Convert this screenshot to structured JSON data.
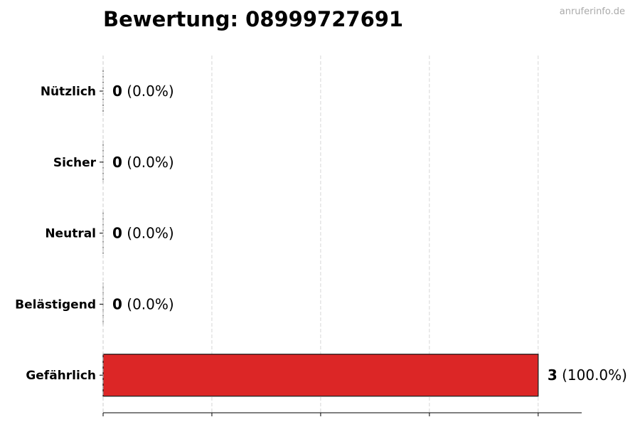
{
  "title": "Bewertung: 08999727691",
  "watermark": "anruferinfo.de",
  "chart_data": {
    "type": "bar",
    "orientation": "horizontal",
    "title": "Bewertung: 08999727691",
    "xlabel": "",
    "ylabel": "",
    "categories": [
      "Nützlich",
      "Sicher",
      "Neutral",
      "Belästigend",
      "Gefährlich"
    ],
    "values": [
      0,
      0,
      0,
      0,
      3
    ],
    "value_labels": [
      "0",
      "0",
      "0",
      "0",
      "3"
    ],
    "percent_labels": [
      "(0.0%)",
      "(0.0%)",
      "(0.0%)",
      "(0.0%)",
      "(100.0%)"
    ],
    "colors": [
      "#2ca02c",
      "#1f77b4",
      "#7f7f7f",
      "#ff7f0e",
      "#dc2626"
    ],
    "xlim": [
      0,
      3.3
    ],
    "xticks": [
      0,
      0.75,
      1.5,
      2.25,
      3
    ],
    "grid": "vertical dashed",
    "legend": "none"
  }
}
